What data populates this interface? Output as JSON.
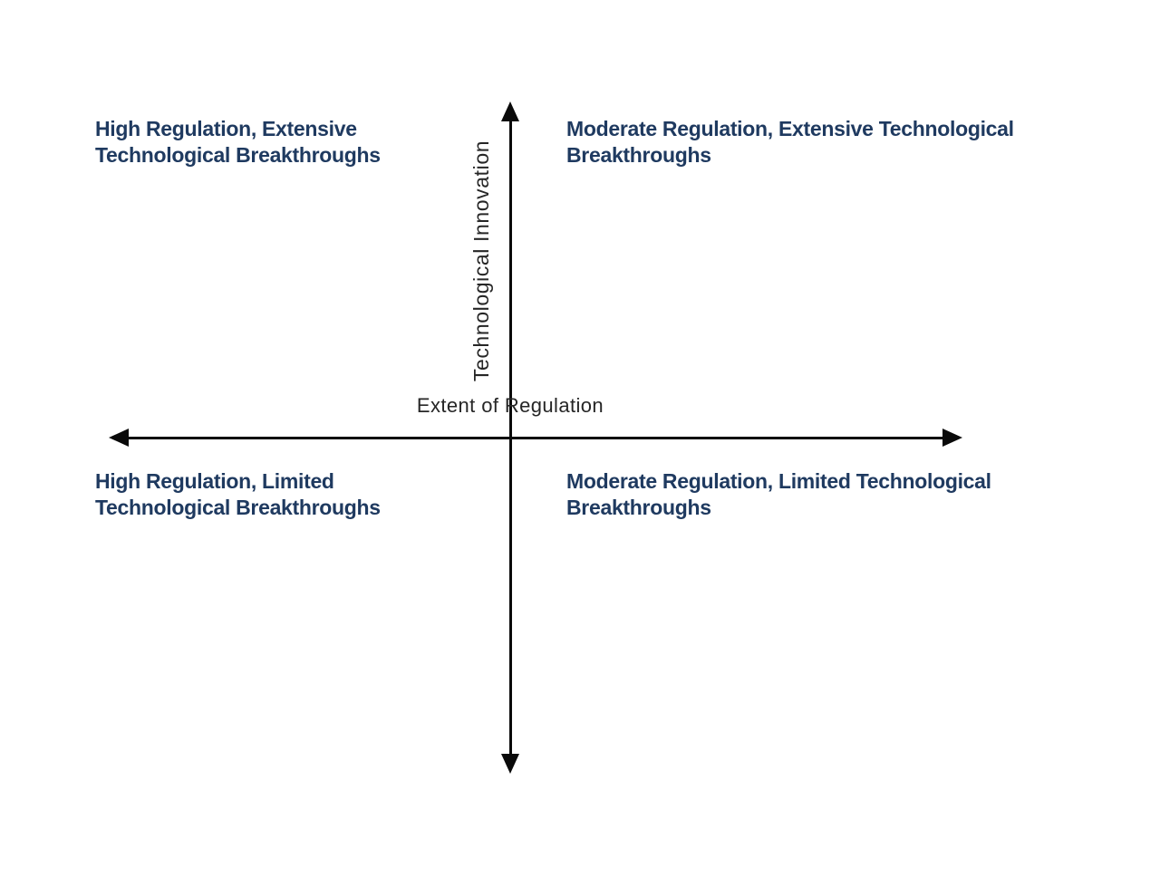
{
  "diagram": {
    "type": "quadrant-matrix",
    "background_color": "#ffffff",
    "axis": {
      "x_label": "Extent of Regulation",
      "y_label": "Technological Innovation",
      "line_color": "#0a0a0a",
      "label_color": "#262626",
      "arrowheads": [
        "up",
        "down",
        "left",
        "right"
      ]
    },
    "quadrants": {
      "top_left": {
        "line1": "High Regulation, Extensive",
        "line2": "Technological Breakthroughs"
      },
      "top_right": {
        "line1": "Moderate Regulation, Extensive Technological",
        "line2": "Breakthroughs"
      },
      "bottom_left": {
        "line1": "High Regulation, Limited",
        "line2": "Technological Breakthroughs"
      },
      "bottom_right": {
        "line1": "Moderate Regulation, Limited Technological",
        "line2": "Breakthroughs"
      },
      "text_color": "#1f3a60"
    }
  }
}
